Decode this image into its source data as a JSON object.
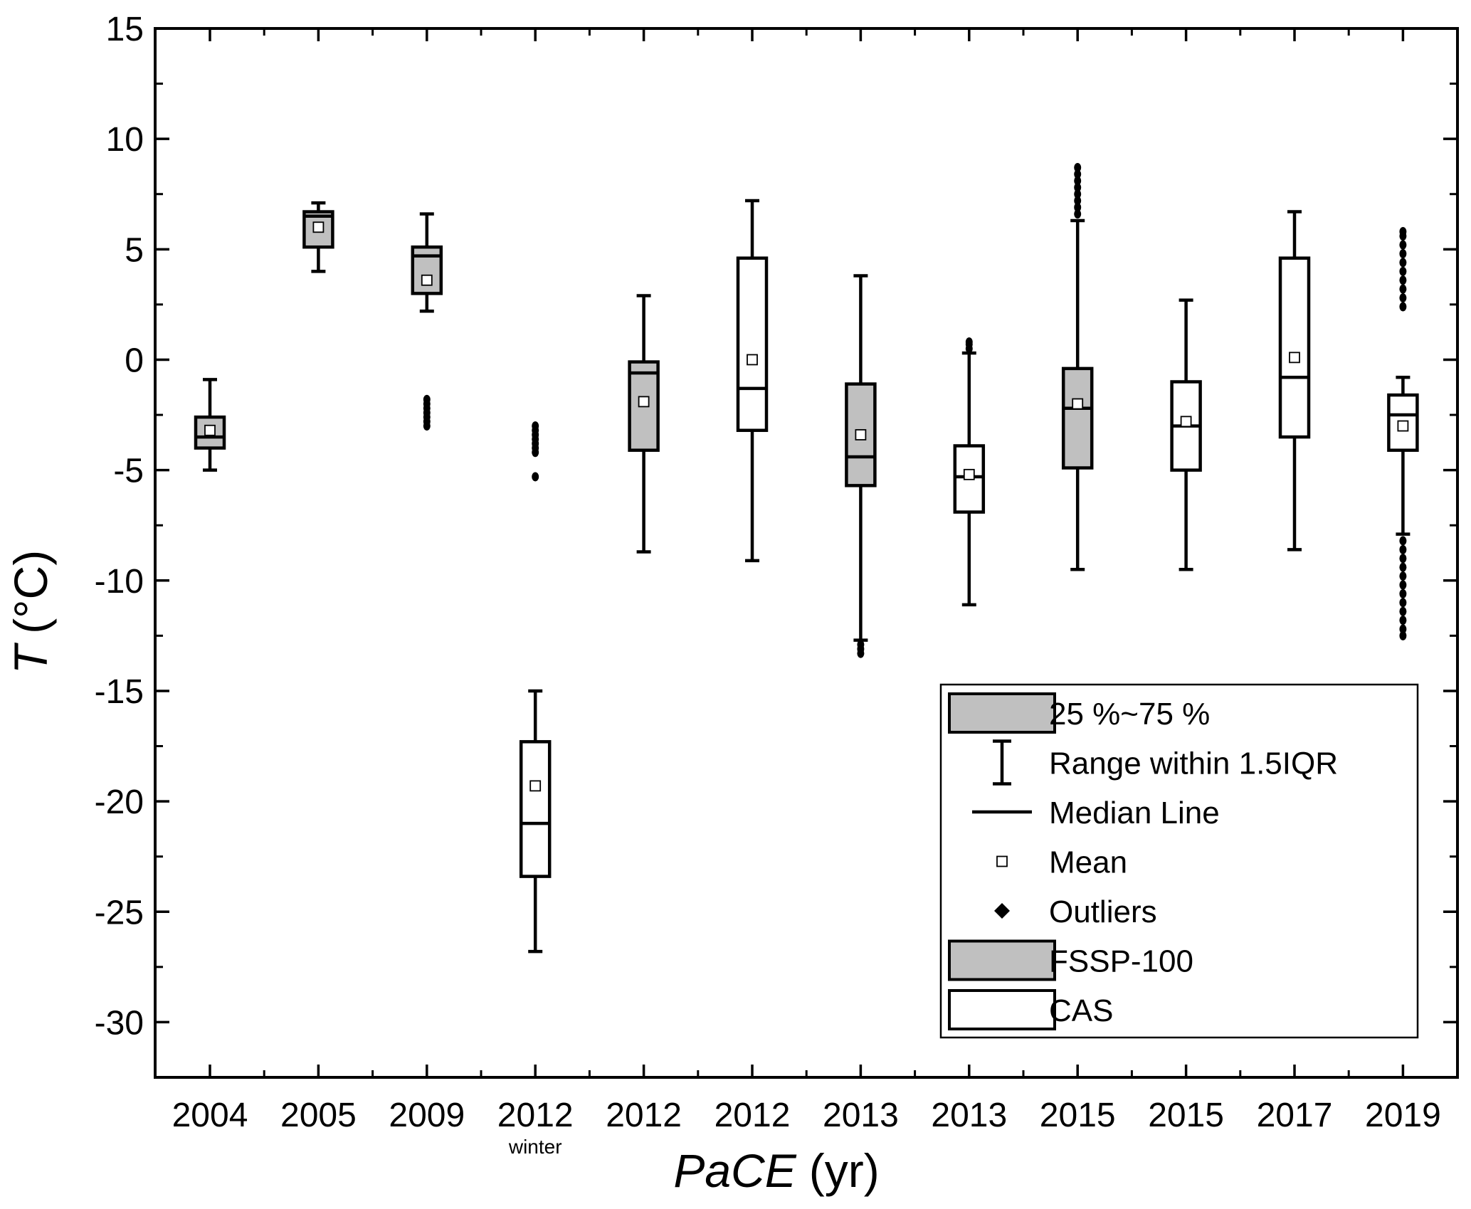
{
  "chart_data": {
    "type": "box",
    "xlabel": {
      "main": "PaCE",
      "unit": "(yr)"
    },
    "ylabel": {
      "main": "T",
      "unit": "(°C)"
    },
    "ylim": [
      -32.5,
      15
    ],
    "yticks": [
      15,
      10,
      5,
      0,
      -5,
      -10,
      -15,
      -20,
      -25,
      -30
    ],
    "grid": false,
    "legend_position": "bottom-right",
    "categories": [
      {
        "label": "2004",
        "sublabel": ""
      },
      {
        "label": "2005",
        "sublabel": ""
      },
      {
        "label": "2009",
        "sublabel": ""
      },
      {
        "label": "2012",
        "sublabel": "winter"
      },
      {
        "label": "2012",
        "sublabel": ""
      },
      {
        "label": "2012",
        "sublabel": ""
      },
      {
        "label": "2013",
        "sublabel": ""
      },
      {
        "label": "2013",
        "sublabel": ""
      },
      {
        "label": "2015",
        "sublabel": ""
      },
      {
        "label": "2015",
        "sublabel": ""
      },
      {
        "label": "2017",
        "sublabel": ""
      },
      {
        "label": "2019",
        "sublabel": ""
      }
    ],
    "boxes": [
      {
        "instrument": "FSSP-100",
        "whisker_low": -5.0,
        "q1": -4.0,
        "median": -3.5,
        "q3": -2.6,
        "whisker_high": -0.9,
        "mean": -3.2,
        "outliers": []
      },
      {
        "instrument": "FSSP-100",
        "whisker_low": 4.0,
        "q1": 5.1,
        "median": 6.5,
        "q3": 6.7,
        "whisker_high": 7.1,
        "mean": 6.0,
        "outliers": []
      },
      {
        "instrument": "FSSP-100",
        "whisker_low": 2.2,
        "q1": 3.0,
        "median": 4.7,
        "q3": 5.1,
        "whisker_high": 6.6,
        "mean": 3.6,
        "outliers": [
          -1.8,
          -2.0,
          -2.2,
          -2.4,
          -2.6,
          -2.8,
          -3.0
        ]
      },
      {
        "instrument": "CAS",
        "whisker_low": -26.8,
        "q1": -23.4,
        "median": -21.0,
        "q3": -17.3,
        "whisker_high": -15.0,
        "mean": -19.3,
        "outliers": [
          -3.0,
          -3.2,
          -3.4,
          -3.6,
          -3.8,
          -4.0,
          -4.2,
          -5.3
        ]
      },
      {
        "instrument": "FSSP-100",
        "whisker_low": -8.7,
        "q1": -4.1,
        "median": -0.6,
        "q3": -0.1,
        "whisker_high": 2.9,
        "mean": -1.9,
        "outliers": []
      },
      {
        "instrument": "CAS",
        "whisker_low": -9.1,
        "q1": -3.2,
        "median": -1.3,
        "q3": 4.6,
        "whisker_high": 7.2,
        "mean": 0.0,
        "outliers": []
      },
      {
        "instrument": "FSSP-100",
        "whisker_low": -12.7,
        "q1": -5.7,
        "median": -4.4,
        "q3": -1.1,
        "whisker_high": 3.8,
        "mean": -3.4,
        "outliers": [
          -12.9,
          -13.1,
          -13.3
        ]
      },
      {
        "instrument": "CAS",
        "whisker_low": -11.1,
        "q1": -6.9,
        "median": -5.3,
        "q3": -3.9,
        "whisker_high": 0.3,
        "mean": -5.2,
        "outliers": [
          0.5,
          0.7,
          0.8
        ]
      },
      {
        "instrument": "FSSP-100",
        "whisker_low": -9.5,
        "q1": -4.9,
        "median": -2.2,
        "q3": -0.4,
        "whisker_high": 6.3,
        "mean": -2.0,
        "outliers": [
          6.6,
          6.9,
          7.2,
          7.5,
          7.8,
          8.1,
          8.4,
          8.7
        ]
      },
      {
        "instrument": "CAS",
        "whisker_low": -9.5,
        "q1": -5.0,
        "median": -3.0,
        "q3": -1.0,
        "whisker_high": 2.7,
        "mean": -2.8,
        "outliers": []
      },
      {
        "instrument": "CAS",
        "whisker_low": -8.6,
        "q1": -3.5,
        "median": -0.8,
        "q3": 4.6,
        "whisker_high": 6.7,
        "mean": 0.1,
        "outliers": []
      },
      {
        "instrument": "CAS",
        "whisker_low": -7.9,
        "q1": -4.1,
        "median": -2.5,
        "q3": -1.6,
        "whisker_high": -0.8,
        "mean": -3.0,
        "outliers": [
          2.4,
          2.8,
          3.2,
          3.6,
          4.0,
          4.4,
          4.8,
          5.2,
          5.6,
          5.8,
          -8.2,
          -8.6,
          -9.0,
          -9.4,
          -9.8,
          -10.2,
          -10.6,
          -11.0,
          -11.4,
          -11.8,
          -12.2,
          -12.5
        ]
      }
    ],
    "legend": [
      {
        "key": "box_gray",
        "label": "25 %~75 %"
      },
      {
        "key": "whisker",
        "label": "Range within 1.5IQR"
      },
      {
        "key": "median",
        "label": "Median Line"
      },
      {
        "key": "mean",
        "label": "Mean"
      },
      {
        "key": "outlier",
        "label": "Outliers"
      },
      {
        "key": "box_gray",
        "label": "FSSP-100"
      },
      {
        "key": "box_white",
        "label": "CAS"
      }
    ],
    "colors": {
      "FSSP-100": "#c0c0c0",
      "CAS": "#ffffff",
      "stroke": "#000000"
    }
  }
}
